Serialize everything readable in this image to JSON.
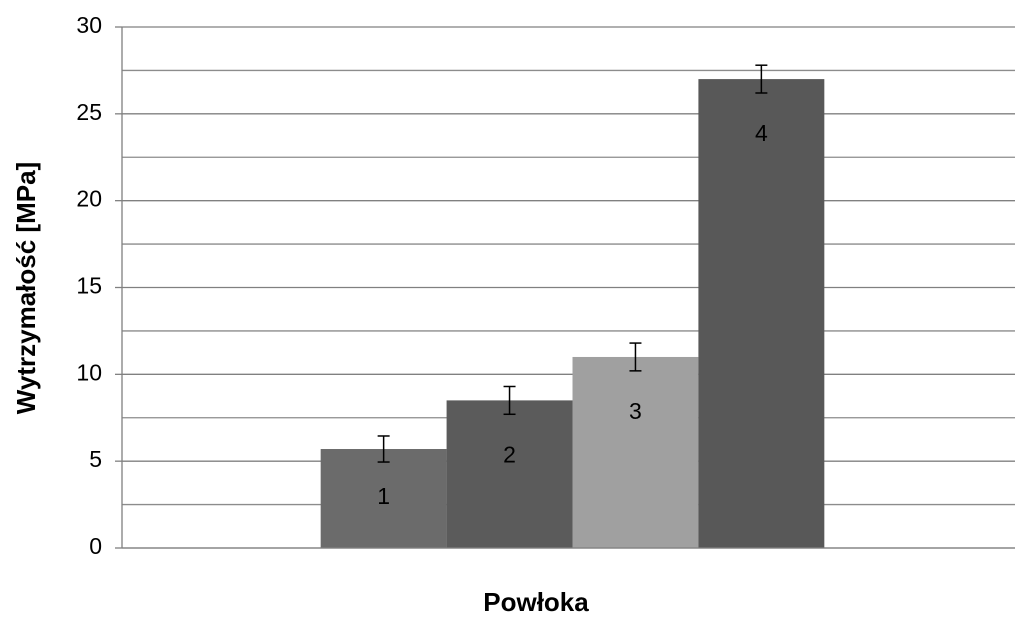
{
  "chart_data": {
    "type": "bar",
    "x_label": "Powłoka",
    "y_label": "Wytrzymałość [MPa]",
    "categories": [
      null
    ],
    "series": [
      {
        "name": "1",
        "color": "#6b6b6b",
        "values": [
          5.7
        ],
        "errors": [
          0.75
        ]
      },
      {
        "name": "2",
        "color": "#5b5b5b",
        "values": [
          8.5
        ],
        "errors": [
          0.8
        ]
      },
      {
        "name": "3",
        "color": "#a0a0a0",
        "values": [
          11
        ],
        "errors": [
          0.8
        ]
      },
      {
        "name": "4",
        "color": "#585858",
        "values": [
          27
        ],
        "errors": [
          0.8
        ]
      }
    ],
    "ylim": [
      0,
      30
    ],
    "yticks": [
      0,
      5,
      10,
      15,
      20,
      25,
      30
    ],
    "minor_yticks": [
      2.5,
      7.5,
      12.5,
      17.5,
      22.5,
      27.5
    ],
    "grid": true
  }
}
